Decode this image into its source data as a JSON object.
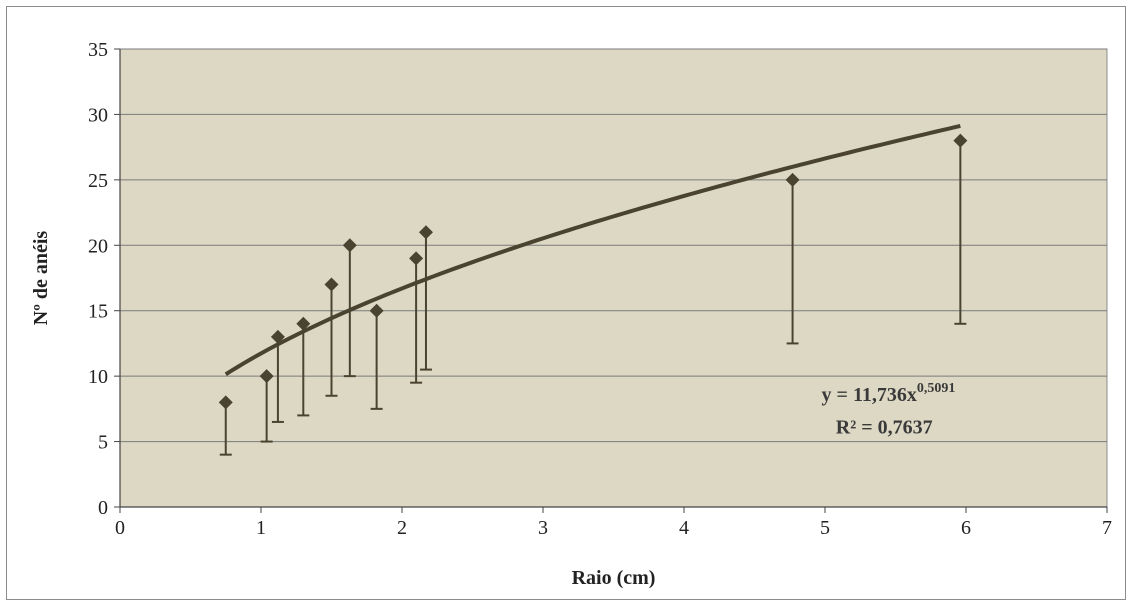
{
  "chart_data": {
    "type": "scatter",
    "title": "",
    "xlabel": "Raio (cm)",
    "ylabel": "Nº de anéis",
    "xlim": [
      0,
      7
    ],
    "ylim": [
      0,
      35
    ],
    "xticks": [
      0,
      1,
      2,
      3,
      4,
      5,
      6,
      7
    ],
    "yticks": [
      0,
      5,
      10,
      15,
      20,
      25,
      30,
      35
    ],
    "grid": "horizontal",
    "legend": "none",
    "points": [
      {
        "x": 0.75,
        "y": 8,
        "err_low": 4
      },
      {
        "x": 1.04,
        "y": 10,
        "err_low": 5
      },
      {
        "x": 1.12,
        "y": 13,
        "err_low": 6.5
      },
      {
        "x": 1.3,
        "y": 14,
        "err_low": 7
      },
      {
        "x": 1.5,
        "y": 17,
        "err_low": 8.5
      },
      {
        "x": 1.63,
        "y": 20,
        "err_low": 10
      },
      {
        "x": 1.82,
        "y": 15,
        "err_low": 7.5
      },
      {
        "x": 2.1,
        "y": 19,
        "err_low": 9.5
      },
      {
        "x": 2.17,
        "y": 21,
        "err_low": 10.5
      },
      {
        "x": 4.77,
        "y": 25,
        "err_low": 12.5
      },
      {
        "x": 5.96,
        "y": 28,
        "err_low": 14
      }
    ],
    "trendline": {
      "type": "power",
      "a": 11.736,
      "b": 0.5091,
      "x_range": [
        0.75,
        5.96
      ],
      "equation_base": "y = 11,736x",
      "equation_exp": "0,5091",
      "r2_text": "R² = 0,7637"
    },
    "colors": {
      "plot_bg": "#ddd8c4",
      "marker": "#4a4330",
      "trend": "#4a4330",
      "grid": "#7a7a7a"
    }
  }
}
